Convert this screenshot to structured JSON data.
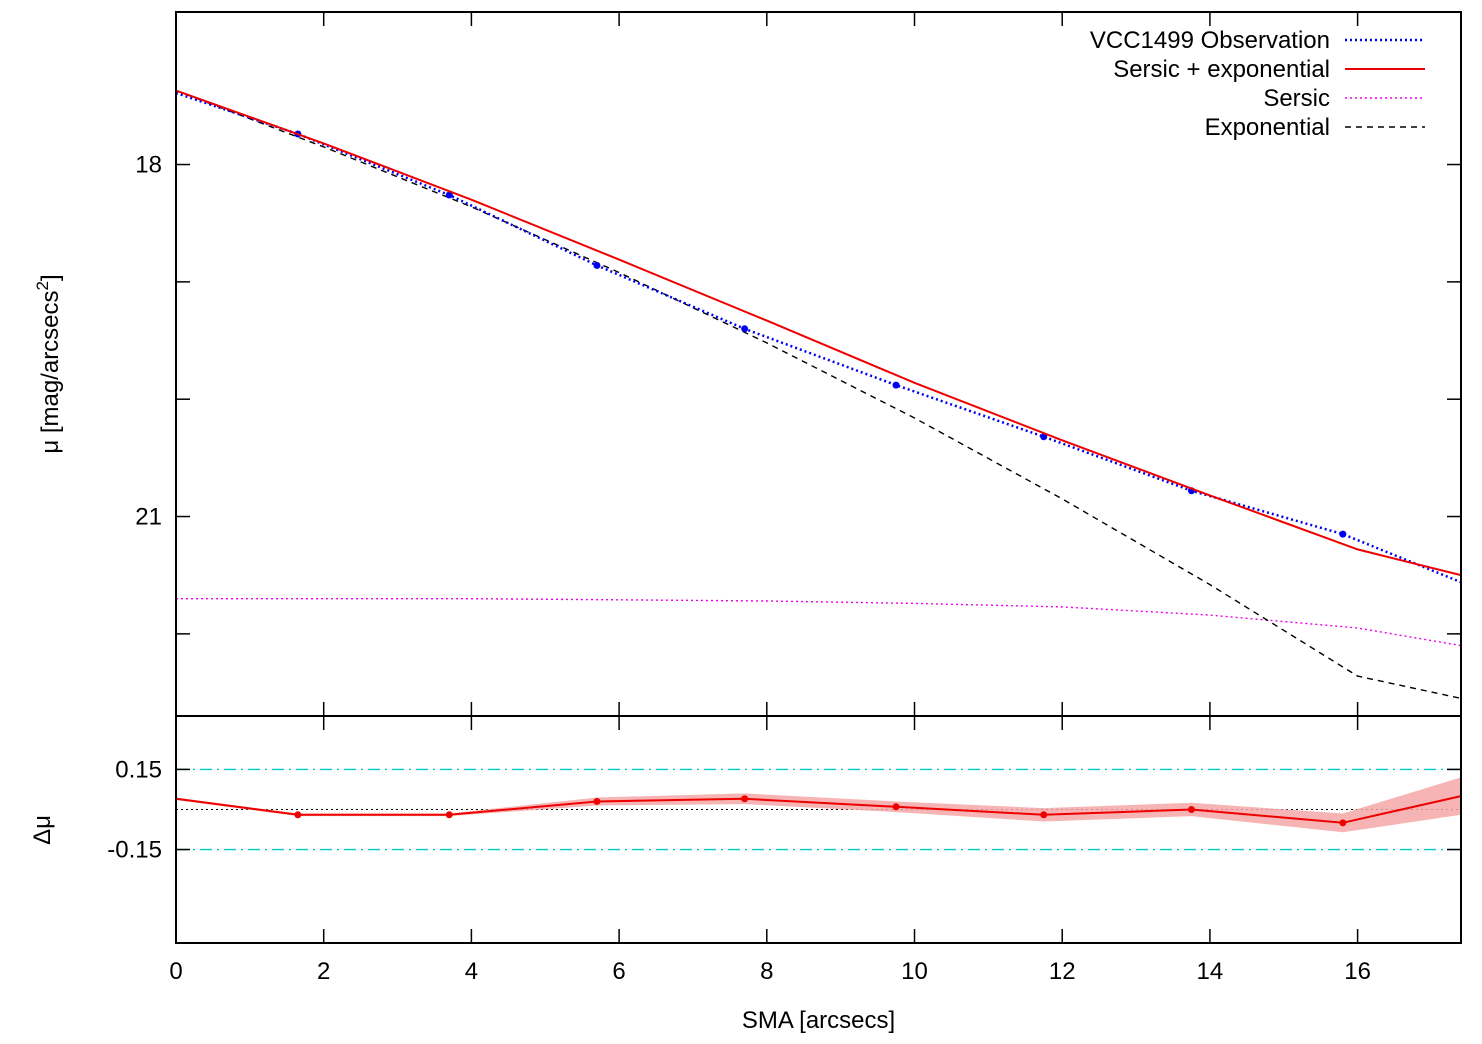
{
  "chart_data": [
    {
      "type": "line",
      "panel": "profile",
      "ylabel": "μ [mag/arcsecs",
      "ylabel_sup": "2",
      "ylabel_end": "]",
      "xlim": [
        0,
        17.4
      ],
      "ylim": [
        22.7,
        16.7
      ],
      "y_inverted": true,
      "ytick_values": [
        18,
        19,
        20,
        21,
        22
      ],
      "ytick_labels": [
        "18",
        "",
        "",
        "21",
        ""
      ],
      "xtick_values": [
        0,
        2,
        4,
        6,
        8,
        10,
        12,
        14,
        16
      ],
      "grid": false,
      "legend_position": "top-right",
      "series": [
        {
          "name": "VCC1499 Observation",
          "style": "dotted-with-points",
          "color": "#0000ee",
          "x": [
            0,
            1.65,
            3.7,
            5.7,
            7.7,
            9.75,
            11.75,
            13.75,
            15.8,
            17.4
          ],
          "y": [
            17.39,
            17.74,
            18.26,
            18.86,
            19.4,
            19.88,
            20.32,
            20.78,
            21.15,
            21.56
          ]
        },
        {
          "name": "Sersic + exponential",
          "style": "solid",
          "color": "#ee0000",
          "x": [
            0,
            2,
            4,
            6,
            8,
            10,
            12,
            14,
            16,
            17.4
          ],
          "y": [
            17.37,
            17.82,
            18.3,
            18.81,
            19.33,
            19.86,
            20.35,
            20.82,
            21.28,
            21.5
          ]
        },
        {
          "name": "Sersic",
          "style": "dotted",
          "color": "#ee00ee",
          "x": [
            0,
            2,
            4,
            6,
            8,
            10,
            12,
            14,
            16,
            17.4
          ],
          "y": [
            21.7,
            21.7,
            21.7,
            21.71,
            21.72,
            21.74,
            21.77,
            21.84,
            21.95,
            22.1
          ]
        },
        {
          "name": "Exponential",
          "style": "dashed",
          "color": "#000000",
          "x": [
            0,
            2,
            4,
            6,
            8,
            10,
            12,
            14,
            16,
            17.4
          ],
          "y": [
            17.37,
            17.85,
            18.36,
            18.92,
            19.52,
            20.16,
            20.85,
            21.58,
            22.36,
            22.55
          ]
        }
      ]
    },
    {
      "type": "line",
      "panel": "residuals",
      "xlabel": "SMA [arcsecs]",
      "ylabel": "Δμ",
      "xlim": [
        0,
        17.4
      ],
      "ylim": [
        -0.5,
        0.35
      ],
      "ytick_values": [
        0.15,
        -0.15
      ],
      "ytick_labels": [
        "0.15",
        "-0.15"
      ],
      "xtick_values": [
        0,
        2,
        4,
        6,
        8,
        10,
        12,
        14,
        16
      ],
      "xtick_labels": [
        "0",
        "2",
        "4",
        "6",
        "8",
        "10",
        "12",
        "14",
        "16"
      ],
      "reference_lines": [
        {
          "y": 0.15,
          "style": "dash-dot",
          "color": "#00cccc"
        },
        {
          "y": -0.15,
          "style": "dash-dot",
          "color": "#00cccc"
        },
        {
          "y": 0.0,
          "style": "dotted",
          "color": "#000000"
        }
      ],
      "series": [
        {
          "style": "solid-with-points-and-band",
          "color": "#ee0000",
          "band_color": "#f4a7a7",
          "x": [
            0,
            1.65,
            3.7,
            5.7,
            7.7,
            9.75,
            11.75,
            13.75,
            15.8,
            17.4
          ],
          "y": [
            0.04,
            -0.02,
            -0.02,
            0.03,
            0.04,
            0.01,
            -0.02,
            0.0,
            -0.05,
            0.05
          ],
          "band_half_width": [
            0.005,
            0.005,
            0.005,
            0.015,
            0.02,
            0.02,
            0.025,
            0.025,
            0.035,
            0.07
          ]
        }
      ]
    }
  ]
}
